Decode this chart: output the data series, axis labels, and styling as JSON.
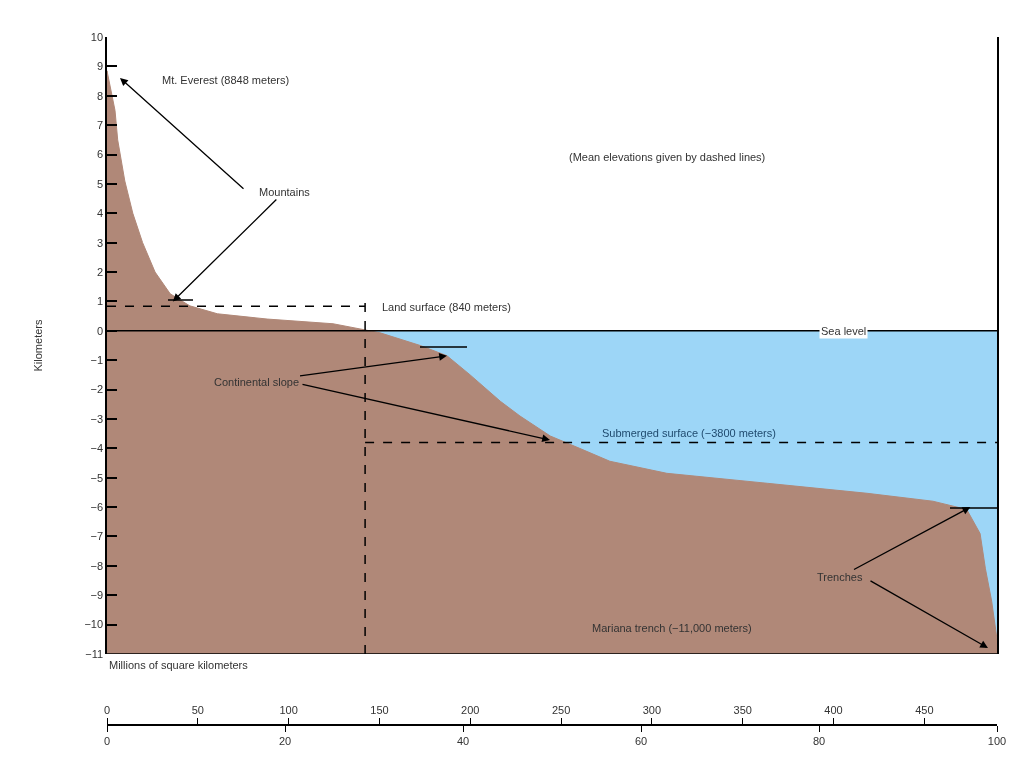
{
  "chart_data": {
    "type": "area",
    "ylabel": "Kilometers",
    "x2label": "Millions of square kilometers",
    "x": [
      0,
      0,
      0.9,
      1.2,
      2,
      2.9,
      4,
      5.4,
      7.1,
      9.3,
      12.4,
      18,
      25.4,
      29,
      30.7,
      35.2,
      38.2,
      40.8,
      44.2,
      46.4,
      49.8,
      53.1,
      56.5,
      62.9,
      74.2,
      85.4,
      92.8,
      96.6,
      98.1,
      98.7,
      99.4,
      100,
      100
    ],
    "series": [
      {
        "color": "#b08878",
        "values": [
          -11,
          8.85,
          7.5,
          6.5,
          5.1,
          4.0,
          3.0,
          2.0,
          1.26,
          0.85,
          0.58,
          0.4,
          0.24,
          0.03,
          -0.07,
          -0.5,
          -0.85,
          -1.5,
          -2.4,
          -2.9,
          -3.58,
          -4.0,
          -4.44,
          -4.85,
          -5.19,
          -5.53,
          -5.8,
          -6.08,
          -6.9,
          -8.1,
          -9.2,
          -10.5,
          -11
        ]
      }
    ],
    "xlim": [
      0,
      100
    ],
    "xticks": [
      0,
      20,
      40,
      60,
      80,
      100
    ],
    "x2lim": [
      0,
      490
    ],
    "x2ticks": [
      0,
      50,
      100,
      150,
      200,
      250,
      300,
      350,
      400,
      450
    ],
    "ylim": [
      -11,
      10
    ],
    "yticks": [
      -11,
      -10,
      -9,
      -8,
      -7,
      -6,
      -5,
      -4,
      -3,
      -2,
      -1,
      0,
      1,
      2,
      3,
      4,
      5,
      6,
      7,
      8,
      9,
      10
    ],
    "bands": [
      {
        "axis": "y",
        "from": -11,
        "to": 0,
        "color": "#9dd6f7"
      }
    ],
    "ref_lines": [
      {
        "axis": "y",
        "value": 0,
        "label": "Sea level",
        "color": "#000000",
        "line_style": "solid"
      },
      {
        "axis": "y",
        "value": 0.84,
        "label": "Land surface (840 meters)",
        "color": "#000000",
        "line_style": "dashed"
      },
      {
        "axis": "y",
        "value": -3.8,
        "label": "Submerged surface (−3800 meters)",
        "color": "#000000",
        "line_style": "dashed"
      },
      {
        "axis": "x",
        "value": 29,
        "color": "#000000",
        "line_style": "dashed"
      }
    ],
    "annotations": [
      "Mt. Everest (8848 meters)",
      {
        "text": "Mountains",
        "x": 7.4,
        "y": 1
      },
      "(Mean elevations given by dashed lines)",
      {
        "text": "Continental slope",
        "x": 38.2,
        "y": -0.85
      },
      {
        "text": "Trenches",
        "x": 97,
        "y": -6
      },
      "Mariana trench (−11,000 meters)"
    ]
  }
}
